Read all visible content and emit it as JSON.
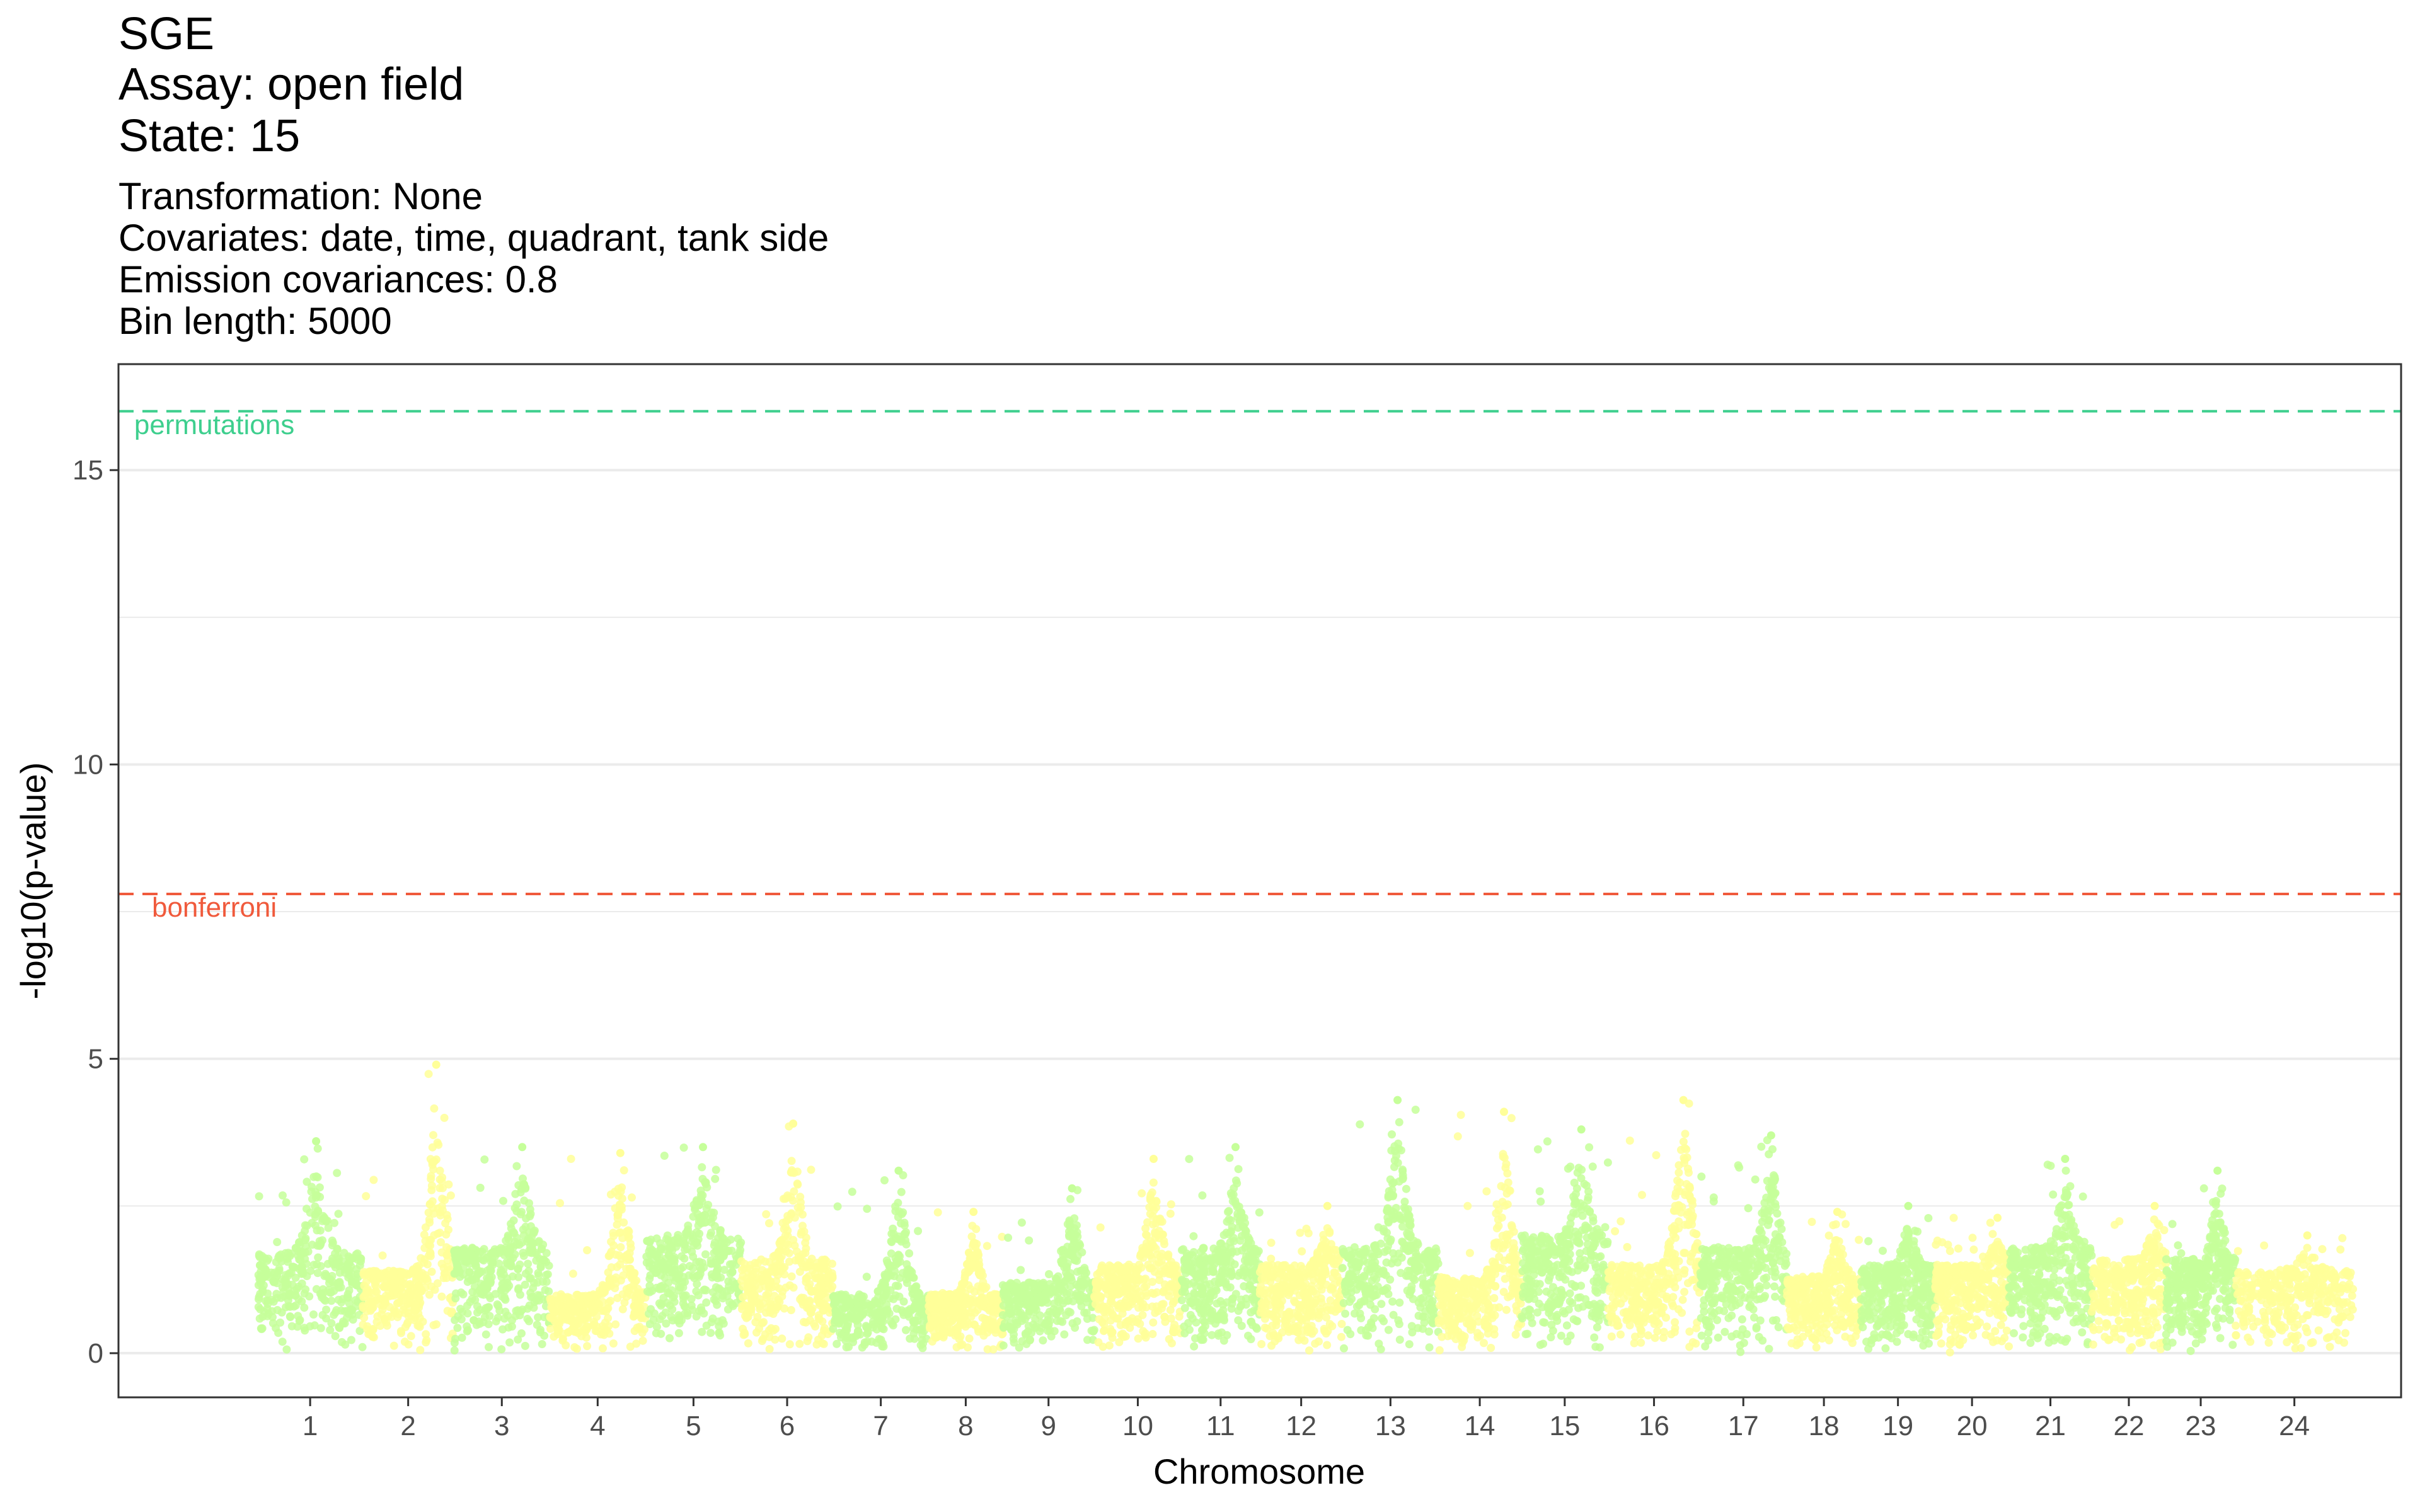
{
  "chart_data": {
    "type": "scatter",
    "title_lines": [
      "SGE",
      "Assay:  open field",
      "State:  15"
    ],
    "subtitle_lines": [
      "Transformation:  None",
      "Covariates:  date, time, quadrant, tank side",
      "Emission covariances:  0.8",
      "Bin length:  5000"
    ],
    "xlabel": "Chromosome",
    "ylabel": "-log10(p-value)",
    "ylim": [
      -0.75,
      16.8
    ],
    "yticks": [
      0,
      5,
      10,
      15
    ],
    "grid": true,
    "colors": {
      "odd": "#c6ff9a",
      "even": "#ffff99"
    },
    "thresholds": [
      {
        "label": "permutations",
        "value": 16.0,
        "color": "#3ecf8e"
      },
      {
        "label": "bonferroni",
        "value": 7.8,
        "color": "#f05a3c"
      }
    ],
    "chromosomes": [
      {
        "label": "1",
        "start": 0.5,
        "end": 1.7,
        "base": 1.7,
        "peak": 3.6
      },
      {
        "label": "2",
        "start": 1.7,
        "end": 2.75,
        "base": 1.4,
        "peak": 4.9
      },
      {
        "label": "3",
        "start": 2.75,
        "end": 3.85,
        "base": 1.8,
        "peak": 3.5
      },
      {
        "label": "4",
        "start": 3.85,
        "end": 4.95,
        "base": 1.0,
        "peak": 3.4
      },
      {
        "label": "5",
        "start": 4.95,
        "end": 6.05,
        "base": 2.0,
        "peak": 3.5
      },
      {
        "label": "6",
        "start": 6.05,
        "end": 7.1,
        "base": 1.6,
        "peak": 3.9
      },
      {
        "label": "7",
        "start": 7.1,
        "end": 8.2,
        "base": 1.0,
        "peak": 3.1
      },
      {
        "label": "8",
        "start": 8.2,
        "end": 9.05,
        "base": 1.0,
        "peak": 2.4
      },
      {
        "label": "9",
        "start": 9.05,
        "end": 10.1,
        "base": 1.2,
        "peak": 2.8
      },
      {
        "label": "10",
        "start": 10.1,
        "end": 11.1,
        "base": 1.5,
        "peak": 3.3
      },
      {
        "label": "11",
        "start": 11.1,
        "end": 12.0,
        "base": 1.8,
        "peak": 3.5
      },
      {
        "label": "12",
        "start": 12.0,
        "end": 12.95,
        "base": 1.5,
        "peak": 2.5
      },
      {
        "label": "13",
        "start": 12.95,
        "end": 14.05,
        "base": 1.8,
        "peak": 4.3
      },
      {
        "label": "14",
        "start": 14.05,
        "end": 15.0,
        "base": 1.3,
        "peak": 4.1
      },
      {
        "label": "15",
        "start": 15.0,
        "end": 16.0,
        "base": 2.0,
        "peak": 3.8
      },
      {
        "label": "16",
        "start": 16.0,
        "end": 17.05,
        "base": 1.5,
        "peak": 4.3
      },
      {
        "label": "17",
        "start": 17.05,
        "end": 18.05,
        "base": 1.8,
        "peak": 3.7
      },
      {
        "label": "18",
        "start": 18.05,
        "end": 18.9,
        "base": 1.3,
        "peak": 2.4
      },
      {
        "label": "19",
        "start": 18.9,
        "end": 19.75,
        "base": 1.5,
        "peak": 2.5
      },
      {
        "label": "20",
        "start": 19.75,
        "end": 20.6,
        "base": 1.5,
        "peak": 2.3
      },
      {
        "label": "21",
        "start": 20.6,
        "end": 21.55,
        "base": 1.8,
        "peak": 3.3
      },
      {
        "label": "22",
        "start": 21.55,
        "end": 22.4,
        "base": 1.6,
        "peak": 2.5
      },
      {
        "label": "23",
        "start": 22.4,
        "end": 23.2,
        "base": 1.6,
        "peak": 3.1
      },
      {
        "label": "24",
        "start": 23.2,
        "end": 24.55,
        "base": 1.4,
        "peak": 2.0
      }
    ]
  }
}
